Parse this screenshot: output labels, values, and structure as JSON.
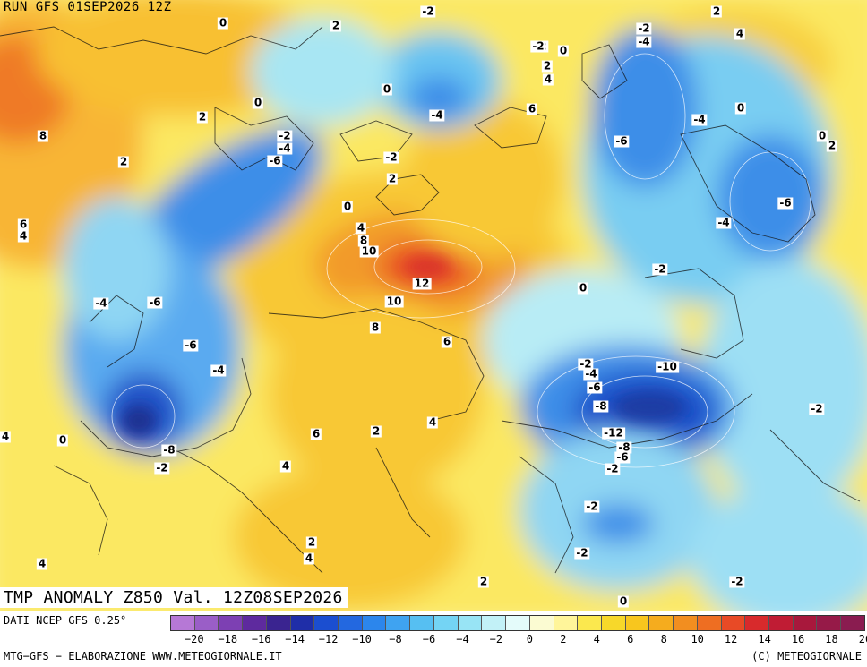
{
  "header": {
    "run": "RUN GFS 01SEP2026 12Z"
  },
  "map": {
    "title": "TMP ANOMALY Z850 Val. 12Z08SEP2026",
    "labels": [
      "0",
      "2",
      "-2",
      "2",
      "4",
      "-2",
      "0",
      "-2",
      "-4",
      "-2",
      "2",
      "4",
      "2",
      "0",
      "0",
      "-4",
      "6",
      "8",
      "2",
      "0",
      "-2",
      "-4",
      "-6",
      "-2",
      "2",
      "-6",
      "0",
      "2",
      "6",
      "4",
      "0",
      "4",
      "8",
      "10",
      "12",
      "10",
      "-4",
      "-6",
      "-2",
      "-4",
      "-6",
      "0",
      "-4",
      "8",
      "6",
      "-6",
      "-4",
      "-2",
      "-4",
      "-2",
      "-10",
      "-6",
      "-8",
      "4",
      "0",
      "6",
      "2",
      "-8",
      "-2",
      "-12",
      "-8",
      "-6",
      "-2",
      "4",
      "-2",
      "-2",
      "2",
      "4",
      "4",
      "4",
      "2",
      "0",
      "-2"
    ],
    "colors": {
      "deep_warm": "#d02a30",
      "warm": "#ee6e26",
      "light_warm": "#f8c836",
      "neutral_pale": "#fbeb68",
      "cool": "#7fd8ee",
      "cold": "#2a72e6",
      "deep_cold": "#1a3aa8"
    }
  },
  "legend": {
    "source": "DATI NCEP GFS 0.25°",
    "colors": [
      "#b678d6",
      "#9a5ec7",
      "#7d40b3",
      "#5e2a9e",
      "#3a2490",
      "#1f2ea8",
      "#1b4ed0",
      "#2368e0",
      "#2c86ec",
      "#3fa3f1",
      "#56bff2",
      "#74d4f4",
      "#98e4f5",
      "#c2f1f7",
      "#e4fbfa",
      "#fbfbd2",
      "#fff59a",
      "#fbe84e",
      "#f7d82a",
      "#f8c61e",
      "#f5ac1e",
      "#f28e20",
      "#ee6e22",
      "#e84a26",
      "#d82a2c",
      "#c01c34",
      "#a8183c",
      "#961a48",
      "#8a1c50"
    ],
    "ticks": [
      "−20",
      "−18",
      "−16",
      "−14",
      "−12",
      "−10",
      "−8",
      "−6",
      "−4",
      "−2",
      "0",
      "2",
      "4",
      "6",
      "8",
      "10",
      "12",
      "14",
      "16",
      "18",
      "20"
    ],
    "credit": "MTG−GFS − ELABORAZIONE WWW.METEOGIORNALE.IT",
    "copyright": "(C) METEOGIORNALE"
  }
}
